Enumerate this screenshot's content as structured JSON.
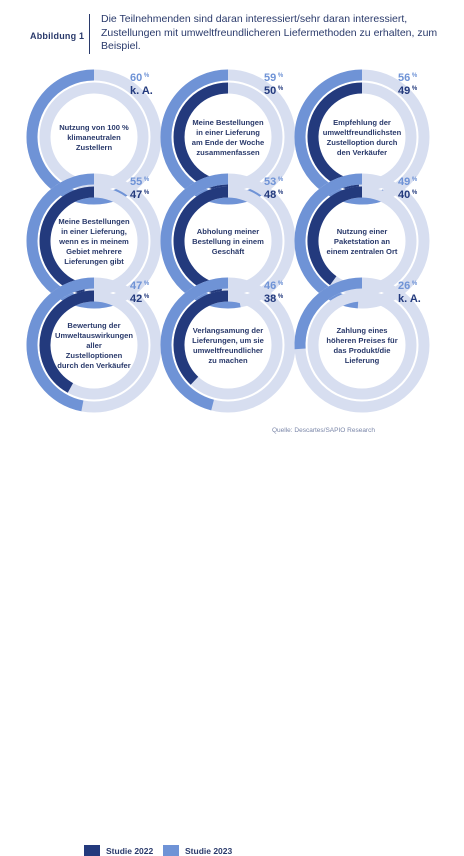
{
  "figure": {
    "label": "Abbildung 1",
    "title": "Die Teilnehmenden sind daran interessiert/sehr daran interessiert, Zustellungen mit umweltfreundlicheren Liefermethoden zu erhalten, zum Beispiel."
  },
  "colors": {
    "series_2022": "#233a7d",
    "series_2023": "#6f93d6",
    "ring_bg": "#d7def0",
    "text": "#2a3a6b"
  },
  "chart_data": {
    "type": "donut",
    "unit": "%",
    "series": [
      {
        "name": "Studie 2022"
      },
      {
        "name": "Studie 2023"
      }
    ],
    "items": [
      {
        "label": "Nutzung von 100 % klimaneutralen Zustellern",
        "v2023": 60,
        "v2022": null,
        "v2022_text": "k. A."
      },
      {
        "label": "Meine Bestellungen in einer Lieferung am Ende der Woche zusammenfassen",
        "v2023": 59,
        "v2022": 50
      },
      {
        "label": "Empfehlung der umweltfreundlichsten Zustelloption durch den Verkäufer",
        "v2023": 56,
        "v2022": 49
      },
      {
        "label": "Meine Bestellungen in einer Lieferung, wenn es in meinem Gebiet mehrere Lieferungen gibt",
        "v2023": 55,
        "v2022": 47
      },
      {
        "label": "Abholung meiner Bestellung in einem Geschäft",
        "v2023": 53,
        "v2022": 48
      },
      {
        "label": "Nutzung einer Paketstation an einem zentralen Ort",
        "v2023": 49,
        "v2022": 40
      },
      {
        "label": "Bewertung der Umweltauswirkungen aller Zustelloptionen durch den Verkäufer",
        "v2023": 47,
        "v2022": 42
      },
      {
        "label": "Verlangsamung der Lieferungen, um sie umweltfreundlicher zu machen",
        "v2023": 46,
        "v2022": 38
      },
      {
        "label": "Zahlung eines höheren Preises für das Produkt/die Lieferung",
        "v2023": 26,
        "v2022": null,
        "v2022_text": "k. A."
      }
    ]
  },
  "legend": {
    "label_2022": "Studie 2022",
    "label_2023": "Studie 2023"
  },
  "source": "Quelle: Descartes/SAPIO Research"
}
